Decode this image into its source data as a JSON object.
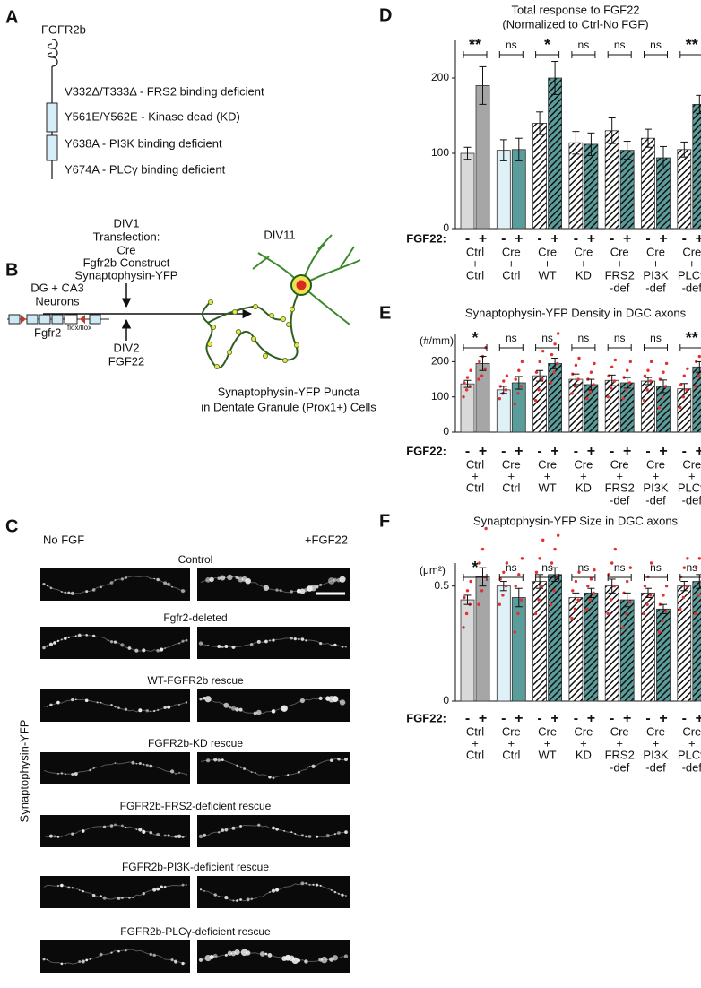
{
  "panel_a": {
    "label": "A",
    "protein": "FGFR2b",
    "mutations": [
      "V332Δ/T333Δ - FRS2 binding deficient",
      "Y561E/Y562E - Kinase dead (KD)",
      "Y638A - PI3K binding deficient",
      "Y674A - PLCγ binding deficient"
    ]
  },
  "panel_b": {
    "label": "B",
    "div1": [
      "DIV1",
      "Transfection:",
      "Cre",
      "Fgfr2b Construct",
      "Synaptophysin-YFP"
    ],
    "div11": "DIV11",
    "cells": [
      "DG + CA3",
      "Neurons"
    ],
    "gene": "Fgfr2",
    "gene_sup": "flox/flox",
    "div2": [
      "DIV2",
      "FGF22"
    ],
    "result": [
      "Synaptophysin-YFP Puncta",
      "in Dentate Granule (Prox1+) Cells"
    ]
  },
  "panel_c": {
    "label": "C",
    "columns": [
      "No FGF",
      "+FGF22"
    ],
    "ylabel": "Synaptophysin-YFP",
    "rows": [
      "Control",
      "Fgfr2-deleted",
      "WT-FGFR2b rescue",
      "FGFR2b-KD rescue",
      "FGFR2b-FRS2-deficient rescue",
      "FGFR2b-PI3K-deficient rescue",
      "FGFR2b-PLCγ-deficient rescue"
    ]
  },
  "chart_data": [
    {
      "label": "D",
      "type": "bar",
      "title": "Total response to FGF22",
      "subtitle": "(Normalized to Ctrl-No FGF)",
      "ylim": [
        0,
        250
      ],
      "yticks": [
        0,
        100,
        200
      ],
      "series_label": "FGF22:",
      "joiner": "+",
      "categories": [
        "Ctrl",
        "Cre",
        "Cre",
        "Cre",
        "Cre",
        "Cre",
        "Cre"
      ],
      "constructs": [
        [
          "Ctrl"
        ],
        [
          "Ctrl"
        ],
        [
          "WT"
        ],
        [
          "KD"
        ],
        [
          "FRS2",
          "-def"
        ],
        [
          "PI3K",
          "-def"
        ],
        [
          "PLCγ",
          "-def"
        ]
      ],
      "hatched": [
        false,
        false,
        true,
        true,
        true,
        true,
        true
      ],
      "significance": [
        "**",
        "ns",
        "*",
        "ns",
        "ns",
        "ns",
        "**"
      ],
      "series": [
        {
          "name": "-",
          "colors": [
            "#d9d9d9",
            "#dff1f7",
            "#ffffff",
            "#ffffff",
            "#ffffff",
            "#ffffff",
            "#ffffff"
          ],
          "values": [
            100,
            104,
            140,
            114,
            130,
            120,
            105
          ],
          "errors": [
            8,
            14,
            15,
            15,
            17,
            12,
            10
          ]
        },
        {
          "name": "+",
          "colors": [
            "#a6a6a6",
            "#5a9d9b",
            "#5a9d9b",
            "#5a9d9b",
            "#5a9d9b",
            "#5a9d9b",
            "#5a9d9b"
          ],
          "values": [
            190,
            105,
            200,
            112,
            104,
            94,
            165
          ],
          "errors": [
            25,
            15,
            22,
            15,
            12,
            15,
            12
          ]
        }
      ]
    },
    {
      "label": "E",
      "type": "bar",
      "title": "Synaptophysin-YFP Density in DGC axons",
      "ylabel": "(#/mm)",
      "ylim": [
        0,
        280
      ],
      "yticks": [
        0,
        100,
        200
      ],
      "series_label": "FGF22:",
      "joiner": "+",
      "categories": [
        "Ctrl",
        "Cre",
        "Cre",
        "Cre",
        "Cre",
        "Cre",
        "Cre"
      ],
      "constructs": [
        [
          "Ctrl"
        ],
        [
          "Ctrl"
        ],
        [
          "WT"
        ],
        [
          "KD"
        ],
        [
          "FRS2",
          "-def"
        ],
        [
          "PI3K",
          "-def"
        ],
        [
          "PLCγ",
          "-def"
        ]
      ],
      "hatched": [
        false,
        false,
        true,
        true,
        true,
        true,
        true
      ],
      "significance": [
        "*",
        "ns",
        "ns",
        "ns",
        "ns",
        "ns",
        "**"
      ],
      "point_color": "#e0302f",
      "series": [
        {
          "name": "-",
          "colors": [
            "#d9d9d9",
            "#dff1f7",
            "#ffffff",
            "#ffffff",
            "#ffffff",
            "#ffffff",
            "#ffffff"
          ],
          "values": [
            137,
            120,
            160,
            150,
            147,
            145,
            123
          ],
          "errors": [
            10,
            10,
            15,
            15,
            15,
            10,
            15
          ],
          "points": [
            [
              100,
              120,
              130,
              140,
              155,
              175
            ],
            [
              95,
              110,
              120,
              130,
              145,
              160
            ],
            [
              90,
              120,
              150,
              170,
              200,
              230
            ],
            [
              110,
              130,
              150,
              165,
              190,
              210
            ],
            [
              100,
              125,
              145,
              160,
              185,
              205
            ],
            [
              90,
              120,
              145,
              160,
              175,
              200
            ],
            [
              70,
              100,
              120,
              135,
              160,
              180
            ]
          ]
        },
        {
          "name": "+",
          "colors": [
            "#a6a6a6",
            "#5a9d9b",
            "#5a9d9b",
            "#5a9d9b",
            "#5a9d9b",
            "#5a9d9b",
            "#5a9d9b"
          ],
          "values": [
            195,
            140,
            195,
            135,
            140,
            130,
            185
          ],
          "errors": [
            20,
            18,
            15,
            15,
            15,
            18,
            15
          ],
          "points": [
            [
              150,
              160,
              180,
              200,
              215,
              240
            ],
            [
              80,
              110,
              130,
              150,
              175,
              200
            ],
            [
              140,
              170,
              195,
              220,
              250,
              280
            ],
            [
              95,
              115,
              135,
              150,
              170,
              195
            ],
            [
              95,
              120,
              140,
              155,
              175,
              200
            ],
            [
              70,
              100,
              130,
              150,
              170,
              195
            ],
            [
              130,
              160,
              180,
              200,
              215,
              240
            ]
          ]
        }
      ]
    },
    {
      "label": "F",
      "type": "bar",
      "title": "Synaptophysin-YFP Size in DGC axons",
      "ylabel": "(μm²)",
      "ylim": [
        0,
        0.6
      ],
      "yticks": [
        0,
        0.5
      ],
      "series_label": "FGF22:",
      "joiner": "+",
      "categories": [
        "Ctrl",
        "Cre",
        "Cre",
        "Cre",
        "Cre",
        "Cre",
        "Cre"
      ],
      "constructs": [
        [
          "Ctrl"
        ],
        [
          "Ctrl"
        ],
        [
          "WT"
        ],
        [
          "KD"
        ],
        [
          "FRS2",
          "-def"
        ],
        [
          "PI3K",
          "-def"
        ],
        [
          "PLCγ",
          "-def"
        ]
      ],
      "hatched": [
        false,
        false,
        true,
        true,
        true,
        true,
        true
      ],
      "significance": [
        "*",
        "ns",
        "ns",
        "ns",
        "ns",
        "ns",
        "ns"
      ],
      "point_color": "#e0302f",
      "series": [
        {
          "name": "-",
          "colors": [
            "#d9d9d9",
            "#dff1f7",
            "#ffffff",
            "#ffffff",
            "#ffffff",
            "#ffffff",
            "#ffffff"
          ],
          "values": [
            0.44,
            0.5,
            0.52,
            0.45,
            0.5,
            0.47,
            0.5
          ],
          "errors": [
            0.02,
            0.02,
            0.03,
            0.02,
            0.03,
            0.02,
            0.02
          ],
          "points": [
            [
              0.32,
              0.38,
              0.42,
              0.45,
              0.48,
              0.52
            ],
            [
              0.42,
              0.46,
              0.5,
              0.53,
              0.56,
              0.6
            ],
            [
              0.38,
              0.44,
              0.5,
              0.56,
              0.62,
              0.7
            ],
            [
              0.36,
              0.4,
              0.44,
              0.48,
              0.52,
              0.56
            ],
            [
              0.38,
              0.44,
              0.5,
              0.55,
              0.6,
              0.66
            ],
            [
              0.38,
              0.42,
              0.46,
              0.5,
              0.54,
              0.6
            ],
            [
              0.4,
              0.45,
              0.5,
              0.54,
              0.58,
              0.62
            ]
          ]
        },
        {
          "name": "+",
          "colors": [
            "#a6a6a6",
            "#5a9d9b",
            "#5a9d9b",
            "#5a9d9b",
            "#5a9d9b",
            "#5a9d9b",
            "#5a9d9b"
          ],
          "values": [
            0.54,
            0.45,
            0.55,
            0.47,
            0.44,
            0.4,
            0.52
          ],
          "errors": [
            0.04,
            0.04,
            0.03,
            0.02,
            0.03,
            0.02,
            0.03
          ],
          "points": [
            [
              0.42,
              0.48,
              0.54,
              0.6,
              0.66,
              0.75
            ],
            [
              0.3,
              0.38,
              0.44,
              0.5,
              0.55,
              0.62
            ],
            [
              0.42,
              0.48,
              0.54,
              0.6,
              0.66,
              0.72
            ],
            [
              0.4,
              0.44,
              0.47,
              0.5,
              0.53,
              0.57
            ],
            [
              0.32,
              0.38,
              0.43,
              0.47,
              0.52,
              0.58
            ],
            [
              0.3,
              0.35,
              0.39,
              0.42,
              0.46,
              0.5
            ],
            [
              0.38,
              0.46,
              0.52,
              0.58,
              0.62,
              0.68
            ]
          ]
        }
      ]
    }
  ]
}
